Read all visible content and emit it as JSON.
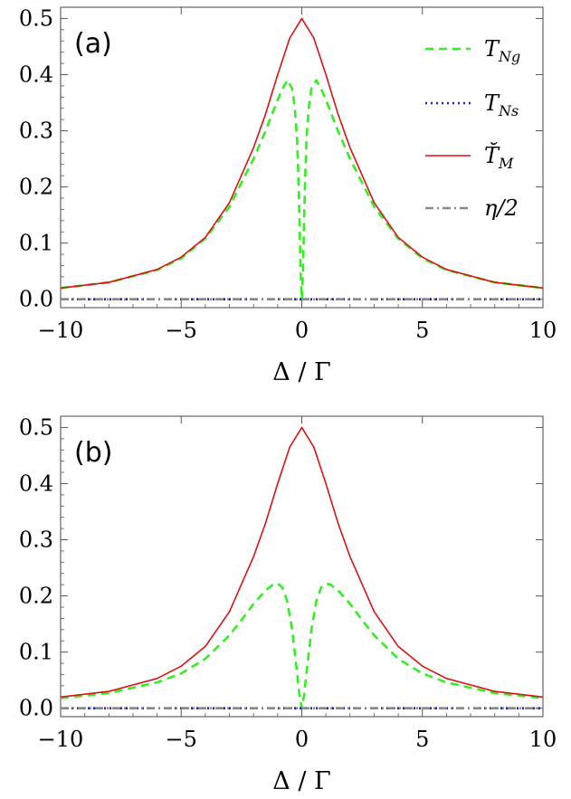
{
  "chart_data": [
    {
      "type": "line",
      "panel_label": "(a)",
      "xlabel": "Δ / Γ",
      "ylabel": "",
      "xlim": [
        -10,
        10
      ],
      "ylim": [
        -0.015,
        0.52
      ],
      "xticks": [
        -10,
        -5,
        0,
        5,
        10
      ],
      "xtick_labels": [
        "−10",
        "−5",
        "0",
        "5",
        "10"
      ],
      "yticks": [
        0.0,
        0.1,
        0.2,
        0.3,
        0.4,
        0.5
      ],
      "ytick_labels": [
        "0.0",
        "0.1",
        "0.2",
        "0.3",
        "0.4",
        "0.5"
      ],
      "grid": false,
      "legend_position": "right",
      "series": [
        {
          "name": "T_Ng",
          "legend_main": "T",
          "legend_sub": "Ng",
          "style": "dashed",
          "color": "#33ee22",
          "x": [
            -10,
            -8,
            -6,
            -5,
            -4,
            -3,
            -2,
            -1.5,
            -1,
            -0.8,
            -0.6,
            -0.4,
            -0.3,
            -0.2,
            -0.15,
            -0.1,
            -0.05,
            0,
            0.05,
            0.1,
            0.15,
            0.2,
            0.3,
            0.4,
            0.6,
            0.8,
            1,
            1.5,
            2,
            3,
            4,
            5,
            6,
            8,
            10
          ],
          "y": [
            0.02,
            0.03,
            0.052,
            0.073,
            0.108,
            0.165,
            0.25,
            0.3,
            0.355,
            0.375,
            0.39,
            0.375,
            0.345,
            0.29,
            0.23,
            0.15,
            0.05,
            0.0,
            0.05,
            0.15,
            0.23,
            0.29,
            0.345,
            0.375,
            0.39,
            0.375,
            0.355,
            0.3,
            0.25,
            0.165,
            0.108,
            0.073,
            0.052,
            0.03,
            0.02
          ]
        },
        {
          "name": "T_Ns",
          "legend_main": "T",
          "legend_sub": "Ns",
          "style": "dotted",
          "color": "#1f1fcc",
          "x": [
            -10,
            10
          ],
          "y": [
            0.0,
            0.0
          ]
        },
        {
          "name": "T̆_M",
          "legend_main": "T̆",
          "legend_sub": "M",
          "style": "solid",
          "color": "#dd1111",
          "x": [
            -10,
            -8,
            -6,
            -5,
            -4,
            -3,
            -2,
            -1.5,
            -1,
            -0.5,
            0,
            0.5,
            1,
            1.5,
            2,
            3,
            4,
            5,
            6,
            8,
            10
          ],
          "y": [
            0.02,
            0.03,
            0.053,
            0.075,
            0.11,
            0.172,
            0.27,
            0.33,
            0.4,
            0.465,
            0.5,
            0.465,
            0.4,
            0.33,
            0.27,
            0.172,
            0.11,
            0.075,
            0.053,
            0.03,
            0.02
          ]
        },
        {
          "name": "η/2",
          "legend_main": "η/2",
          "legend_sub": "",
          "style": "dashdot",
          "color": "#888888",
          "x": [
            -10,
            10
          ],
          "y": [
            0.0,
            0.0
          ]
        }
      ]
    },
    {
      "type": "line",
      "panel_label": "(b)",
      "xlabel": "Δ / Γ",
      "ylabel": "",
      "xlim": [
        -10,
        10
      ],
      "ylim": [
        -0.015,
        0.52
      ],
      "xticks": [
        -10,
        -5,
        0,
        5,
        10
      ],
      "xtick_labels": [
        "−10",
        "−5",
        "0",
        "5",
        "10"
      ],
      "yticks": [
        0.0,
        0.1,
        0.2,
        0.3,
        0.4,
        0.5
      ],
      "ytick_labels": [
        "0.0",
        "0.1",
        "0.2",
        "0.3",
        "0.4",
        "0.5"
      ],
      "grid": false,
      "series": [
        {
          "name": "T_Ng",
          "style": "dashed",
          "color": "#33ee22",
          "x": [
            -10,
            -8,
            -6,
            -5,
            -4,
            -3,
            -2.5,
            -2,
            -1.5,
            -1.2,
            -1,
            -0.8,
            -0.6,
            -0.4,
            -0.2,
            -0.1,
            0,
            0.1,
            0.2,
            0.4,
            0.6,
            0.8,
            1,
            1.2,
            1.5,
            2,
            2.5,
            3,
            4,
            5,
            6,
            8,
            10
          ],
          "y": [
            0.018,
            0.027,
            0.046,
            0.062,
            0.088,
            0.13,
            0.157,
            0.186,
            0.21,
            0.22,
            0.222,
            0.215,
            0.19,
            0.14,
            0.065,
            0.025,
            0.0,
            0.025,
            0.065,
            0.14,
            0.19,
            0.215,
            0.222,
            0.22,
            0.21,
            0.186,
            0.157,
            0.13,
            0.088,
            0.062,
            0.046,
            0.027,
            0.018
          ]
        },
        {
          "name": "T_Ns",
          "style": "dotted",
          "color": "#1f1fcc",
          "x": [
            -10,
            10
          ],
          "y": [
            0.0,
            0.0
          ]
        },
        {
          "name": "T̆_M",
          "style": "solid",
          "color": "#dd1111",
          "x": [
            -10,
            -8,
            -6,
            -5,
            -4,
            -3,
            -2,
            -1.5,
            -1,
            -0.5,
            0,
            0.5,
            1,
            1.5,
            2,
            3,
            4,
            5,
            6,
            8,
            10
          ],
          "y": [
            0.02,
            0.03,
            0.053,
            0.075,
            0.11,
            0.172,
            0.27,
            0.33,
            0.4,
            0.465,
            0.5,
            0.465,
            0.4,
            0.33,
            0.27,
            0.172,
            0.11,
            0.075,
            0.053,
            0.03,
            0.02
          ]
        },
        {
          "name": "η/2",
          "style": "dashdot",
          "color": "#888888",
          "x": [
            -10,
            10
          ],
          "y": [
            0.0,
            0.0
          ]
        }
      ]
    }
  ]
}
